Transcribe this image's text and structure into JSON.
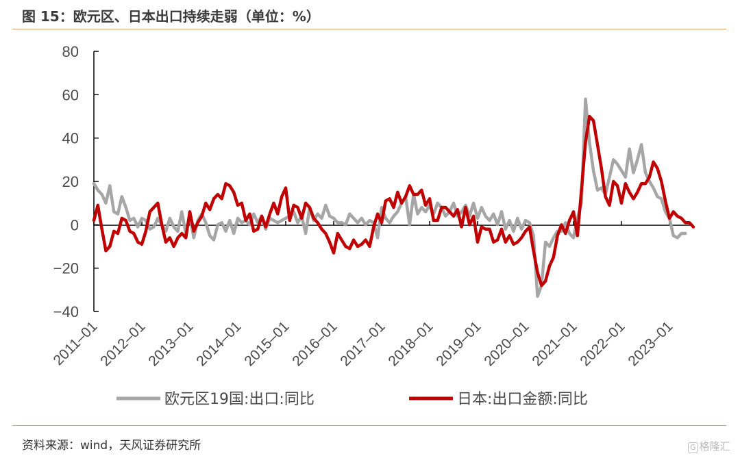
{
  "header": {
    "title": "图 15：欧元区、日本出口持续走弱（单位：%）"
  },
  "footer": {
    "source": "资料来源：wind，天风证券研究所",
    "watermark": "格隆汇"
  },
  "chart_data": {
    "type": "line",
    "title": "图 15：欧元区、日本出口持续走弱（单位：%）",
    "xlabel": "",
    "ylabel": "",
    "ylim": [
      -40,
      80
    ],
    "yticks": [
      80,
      60,
      40,
      20,
      0,
      -20,
      -40
    ],
    "xlim": [
      "2011-01",
      "2023-09"
    ],
    "xticks": [
      "2011-01",
      "2012-01",
      "2013-01",
      "2014-01",
      "2015-01",
      "2016-01",
      "2017-01",
      "2018-01",
      "2019-01",
      "2020-01",
      "2021-01",
      "2022-01",
      "2023-01"
    ],
    "grid": false,
    "legend_position": "bottom",
    "series": [
      {
        "name": "欧元区19国:出口:同比",
        "color": "#a6a6a6",
        "points": [
          [
            "2011-01",
            19
          ],
          [
            "2011-02",
            16
          ],
          [
            "2011-03",
            14
          ],
          [
            "2011-04",
            10
          ],
          [
            "2011-05",
            18
          ],
          [
            "2011-06",
            6
          ],
          [
            "2011-07",
            5
          ],
          [
            "2011-08",
            13
          ],
          [
            "2011-09",
            8
          ],
          [
            "2011-10",
            2
          ],
          [
            "2011-11",
            3
          ],
          [
            "2011-12",
            -1
          ],
          [
            "2012-01",
            3
          ],
          [
            "2012-02",
            2
          ],
          [
            "2012-03",
            -2
          ],
          [
            "2012-04",
            -1
          ],
          [
            "2012-05",
            3
          ],
          [
            "2012-06",
            0
          ],
          [
            "2012-07",
            -3
          ],
          [
            "2012-08",
            3
          ],
          [
            "2012-09",
            -1
          ],
          [
            "2012-10",
            -3
          ],
          [
            "2012-11",
            6
          ],
          [
            "2012-12",
            -4
          ],
          [
            "2013-01",
            4
          ],
          [
            "2013-02",
            -6
          ],
          [
            "2013-03",
            2
          ],
          [
            "2013-04",
            5
          ],
          [
            "2013-05",
            1
          ],
          [
            "2013-06",
            -5
          ],
          [
            "2013-07",
            -7
          ],
          [
            "2013-08",
            0
          ],
          [
            "2013-09",
            1
          ],
          [
            "2013-10",
            -3
          ],
          [
            "2013-11",
            2
          ],
          [
            "2013-12",
            -4
          ],
          [
            "2014-01",
            3
          ],
          [
            "2014-02",
            1
          ],
          [
            "2014-03",
            2
          ],
          [
            "2014-04",
            0
          ],
          [
            "2014-05",
            5
          ],
          [
            "2014-06",
            1
          ],
          [
            "2014-07",
            4
          ],
          [
            "2014-08",
            -2
          ],
          [
            "2014-09",
            3
          ],
          [
            "2014-10",
            2
          ],
          [
            "2014-11",
            1
          ],
          [
            "2014-12",
            2
          ],
          [
            "2015-01",
            3
          ],
          [
            "2015-02",
            4
          ],
          [
            "2015-03",
            6
          ],
          [
            "2015-04",
            1
          ],
          [
            "2015-05",
            4
          ],
          [
            "2015-06",
            -4
          ],
          [
            "2015-07",
            8
          ],
          [
            "2015-08",
            2
          ],
          [
            "2015-09",
            5
          ],
          [
            "2015-10",
            3
          ],
          [
            "2015-11",
            9
          ],
          [
            "2015-12",
            4
          ],
          [
            "2016-01",
            3
          ],
          [
            "2016-02",
            1
          ],
          [
            "2016-03",
            1
          ],
          [
            "2016-04",
            0
          ],
          [
            "2016-05",
            5
          ],
          [
            "2016-06",
            3
          ],
          [
            "2016-07",
            1
          ],
          [
            "2016-08",
            3
          ],
          [
            "2016-09",
            0
          ],
          [
            "2016-10",
            2
          ],
          [
            "2016-11",
            1
          ],
          [
            "2016-12",
            -6
          ],
          [
            "2017-01",
            8
          ],
          [
            "2017-02",
            3
          ],
          [
            "2017-03",
            1
          ],
          [
            "2017-04",
            4
          ],
          [
            "2017-05",
            6
          ],
          [
            "2017-06",
            10
          ],
          [
            "2017-07",
            13
          ],
          [
            "2017-08",
            0
          ],
          [
            "2017-09",
            14
          ],
          [
            "2017-10",
            5
          ],
          [
            "2017-11",
            8
          ],
          [
            "2017-12",
            6
          ],
          [
            "2018-01",
            9
          ],
          [
            "2018-02",
            5
          ],
          [
            "2018-03",
            10
          ],
          [
            "2018-04",
            8
          ],
          [
            "2018-05",
            4
          ],
          [
            "2018-06",
            6
          ],
          [
            "2018-07",
            10
          ],
          [
            "2018-08",
            4
          ],
          [
            "2018-09",
            6
          ],
          [
            "2018-10",
            9
          ],
          [
            "2018-11",
            4
          ],
          [
            "2018-12",
            10
          ],
          [
            "2019-01",
            3
          ],
          [
            "2019-02",
            8
          ],
          [
            "2019-03",
            4
          ],
          [
            "2019-04",
            2
          ],
          [
            "2019-05",
            5
          ],
          [
            "2019-06",
            0
          ],
          [
            "2019-07",
            6
          ],
          [
            "2019-08",
            -2
          ],
          [
            "2019-09",
            2
          ],
          [
            "2019-10",
            -3
          ],
          [
            "2019-11",
            3
          ],
          [
            "2019-12",
            -2
          ],
          [
            "2020-01",
            2
          ],
          [
            "2020-02",
            1
          ],
          [
            "2020-03",
            -5
          ],
          [
            "2020-04",
            -33
          ],
          [
            "2020-05",
            -28
          ],
          [
            "2020-06",
            -8
          ],
          [
            "2020-07",
            -10
          ],
          [
            "2020-08",
            -6
          ],
          [
            "2020-09",
            -3
          ],
          [
            "2020-10",
            -3
          ],
          [
            "2020-11",
            1
          ],
          [
            "2020-12",
            -4
          ],
          [
            "2021-01",
            -6
          ],
          [
            "2021-02",
            3
          ],
          [
            "2021-03",
            10
          ],
          [
            "2021-04",
            58
          ],
          [
            "2021-05",
            38
          ],
          [
            "2021-06",
            25
          ],
          [
            "2021-07",
            16
          ],
          [
            "2021-08",
            17
          ],
          [
            "2021-09",
            14
          ],
          [
            "2021-10",
            22
          ],
          [
            "2021-11",
            30
          ],
          [
            "2021-12",
            28
          ],
          [
            "2022-01",
            25
          ],
          [
            "2022-02",
            22
          ],
          [
            "2022-03",
            35
          ],
          [
            "2022-04",
            24
          ],
          [
            "2022-05",
            30
          ],
          [
            "2022-06",
            37
          ],
          [
            "2022-07",
            24
          ],
          [
            "2022-08",
            20
          ],
          [
            "2022-09",
            17
          ],
          [
            "2022-10",
            13
          ],
          [
            "2022-11",
            12
          ],
          [
            "2022-12",
            6
          ],
          [
            "2023-01",
            3
          ],
          [
            "2023-02",
            -5
          ],
          [
            "2023-03",
            -6
          ],
          [
            "2023-04",
            -4
          ],
          [
            "2023-05",
            -4
          ]
        ]
      },
      {
        "name": "日本:出口金额:同比",
        "color": "#c00000",
        "points": [
          [
            "2011-01",
            2
          ],
          [
            "2011-02",
            9
          ],
          [
            "2011-03",
            -2
          ],
          [
            "2011-04",
            -12
          ],
          [
            "2011-05",
            -10
          ],
          [
            "2011-06",
            -3
          ],
          [
            "2011-07",
            -4
          ],
          [
            "2011-08",
            3
          ],
          [
            "2011-09",
            2
          ],
          [
            "2011-10",
            -3
          ],
          [
            "2011-11",
            -4
          ],
          [
            "2011-12",
            -8
          ],
          [
            "2012-01",
            -9
          ],
          [
            "2012-02",
            -3
          ],
          [
            "2012-03",
            6
          ],
          [
            "2012-04",
            8
          ],
          [
            "2012-05",
            10
          ],
          [
            "2012-06",
            0
          ],
          [
            "2012-07",
            -8
          ],
          [
            "2012-08",
            -6
          ],
          [
            "2012-09",
            -10
          ],
          [
            "2012-10",
            -6
          ],
          [
            "2012-11",
            -4
          ],
          [
            "2012-12",
            -6
          ],
          [
            "2013-01",
            6
          ],
          [
            "2013-02",
            -3
          ],
          [
            "2013-03",
            1
          ],
          [
            "2013-04",
            4
          ],
          [
            "2013-05",
            10
          ],
          [
            "2013-06",
            7
          ],
          [
            "2013-07",
            12
          ],
          [
            "2013-08",
            14
          ],
          [
            "2013-09",
            12
          ],
          [
            "2013-10",
            19
          ],
          [
            "2013-11",
            18
          ],
          [
            "2013-12",
            15
          ],
          [
            "2014-01",
            9
          ],
          [
            "2014-02",
            10
          ],
          [
            "2014-03",
            2
          ],
          [
            "2014-04",
            5
          ],
          [
            "2014-05",
            -3
          ],
          [
            "2014-06",
            -2
          ],
          [
            "2014-07",
            4
          ],
          [
            "2014-08",
            -1
          ],
          [
            "2014-09",
            5
          ],
          [
            "2014-10",
            10
          ],
          [
            "2014-11",
            5
          ],
          [
            "2014-12",
            13
          ],
          [
            "2015-01",
            17
          ],
          [
            "2015-02",
            2
          ],
          [
            "2015-03",
            9
          ],
          [
            "2015-04",
            8
          ],
          [
            "2015-05",
            3
          ],
          [
            "2015-06",
            10
          ],
          [
            "2015-07",
            8
          ],
          [
            "2015-08",
            3
          ],
          [
            "2015-09",
            1
          ],
          [
            "2015-10",
            -2
          ],
          [
            "2015-11",
            -4
          ],
          [
            "2015-12",
            -8
          ],
          [
            "2016-01",
            -13
          ],
          [
            "2016-02",
            -4
          ],
          [
            "2016-03",
            -7
          ],
          [
            "2016-04",
            -10
          ],
          [
            "2016-05",
            -11
          ],
          [
            "2016-06",
            -7
          ],
          [
            "2016-07",
            -10
          ],
          [
            "2016-08",
            -9
          ],
          [
            "2016-09",
            -7
          ],
          [
            "2016-10",
            -10
          ],
          [
            "2016-11",
            -1
          ],
          [
            "2016-12",
            5
          ],
          [
            "2017-01",
            1
          ],
          [
            "2017-02",
            11
          ],
          [
            "2017-03",
            12
          ],
          [
            "2017-04",
            8
          ],
          [
            "2017-05",
            15
          ],
          [
            "2017-06",
            10
          ],
          [
            "2017-07",
            13
          ],
          [
            "2017-08",
            18
          ],
          [
            "2017-09",
            14
          ],
          [
            "2017-10",
            14
          ],
          [
            "2017-11",
            16
          ],
          [
            "2017-12",
            9
          ],
          [
            "2018-01",
            12
          ],
          [
            "2018-02",
            2
          ],
          [
            "2018-03",
            2
          ],
          [
            "2018-04",
            8
          ],
          [
            "2018-05",
            8
          ],
          [
            "2018-06",
            6
          ],
          [
            "2018-07",
            4
          ],
          [
            "2018-08",
            7
          ],
          [
            "2018-09",
            -1
          ],
          [
            "2018-10",
            8
          ],
          [
            "2018-11",
            0
          ],
          [
            "2018-12",
            4
          ],
          [
            "2019-01",
            -8
          ],
          [
            "2019-02",
            -1
          ],
          [
            "2019-03",
            -2
          ],
          [
            "2019-04",
            -2
          ],
          [
            "2019-05",
            -8
          ],
          [
            "2019-06",
            -7
          ],
          [
            "2019-07",
            -2
          ],
          [
            "2019-08",
            -8
          ],
          [
            "2019-09",
            -5
          ],
          [
            "2019-10",
            -9
          ],
          [
            "2019-11",
            -8
          ],
          [
            "2019-12",
            -6
          ],
          [
            "2020-01",
            -3
          ],
          [
            "2020-02",
            -1
          ],
          [
            "2020-03",
            -12
          ],
          [
            "2020-04",
            -22
          ],
          [
            "2020-05",
            -28
          ],
          [
            "2020-06",
            -26
          ],
          [
            "2020-07",
            -19
          ],
          [
            "2020-08",
            -15
          ],
          [
            "2020-09",
            -5
          ],
          [
            "2020-10",
            0
          ],
          [
            "2020-11",
            -4
          ],
          [
            "2020-12",
            2
          ],
          [
            "2021-01",
            6
          ],
          [
            "2021-02",
            -5
          ],
          [
            "2021-03",
            16
          ],
          [
            "2021-04",
            38
          ],
          [
            "2021-05",
            50
          ],
          [
            "2021-06",
            48
          ],
          [
            "2021-07",
            37
          ],
          [
            "2021-08",
            26
          ],
          [
            "2021-09",
            13
          ],
          [
            "2021-10",
            9
          ],
          [
            "2021-11",
            20
          ],
          [
            "2021-12",
            18
          ],
          [
            "2022-01",
            10
          ],
          [
            "2022-02",
            19
          ],
          [
            "2022-03",
            15
          ],
          [
            "2022-04",
            12
          ],
          [
            "2022-05",
            15
          ],
          [
            "2022-06",
            19
          ],
          [
            "2022-07",
            19
          ],
          [
            "2022-08",
            22
          ],
          [
            "2022-09",
            29
          ],
          [
            "2022-10",
            26
          ],
          [
            "2022-11",
            20
          ],
          [
            "2022-12",
            11
          ],
          [
            "2023-01",
            3
          ],
          [
            "2023-02",
            6
          ],
          [
            "2023-03",
            4
          ],
          [
            "2023-04",
            3
          ],
          [
            "2023-05",
            1
          ],
          [
            "2023-06",
            1
          ],
          [
            "2023-07",
            -1
          ]
        ]
      }
    ]
  }
}
